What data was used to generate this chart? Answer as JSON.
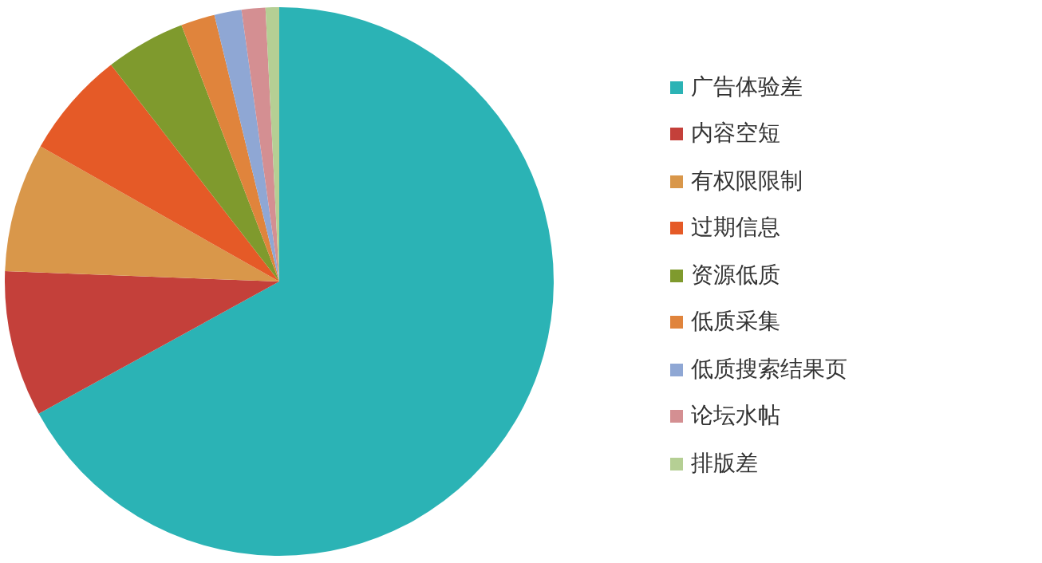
{
  "chart_data": {
    "type": "pie",
    "categories": [
      "广告体验差",
      "内容空短",
      "有权限限制",
      "过期信息",
      "资源低质",
      "低质采集",
      "低质搜索结果页",
      "论坛水帖",
      "排版差"
    ],
    "values": [
      67,
      8.6,
      7.6,
      6.3,
      4.7,
      2,
      1.6,
      1.4,
      0.8
    ],
    "colors": [
      "#2bb3b5",
      "#c4403a",
      "#d9974a",
      "#e55a27",
      "#7f9a2d",
      "#e0843c",
      "#8fa7d4",
      "#d48f92",
      "#b5cf94"
    ],
    "legend": "right"
  }
}
